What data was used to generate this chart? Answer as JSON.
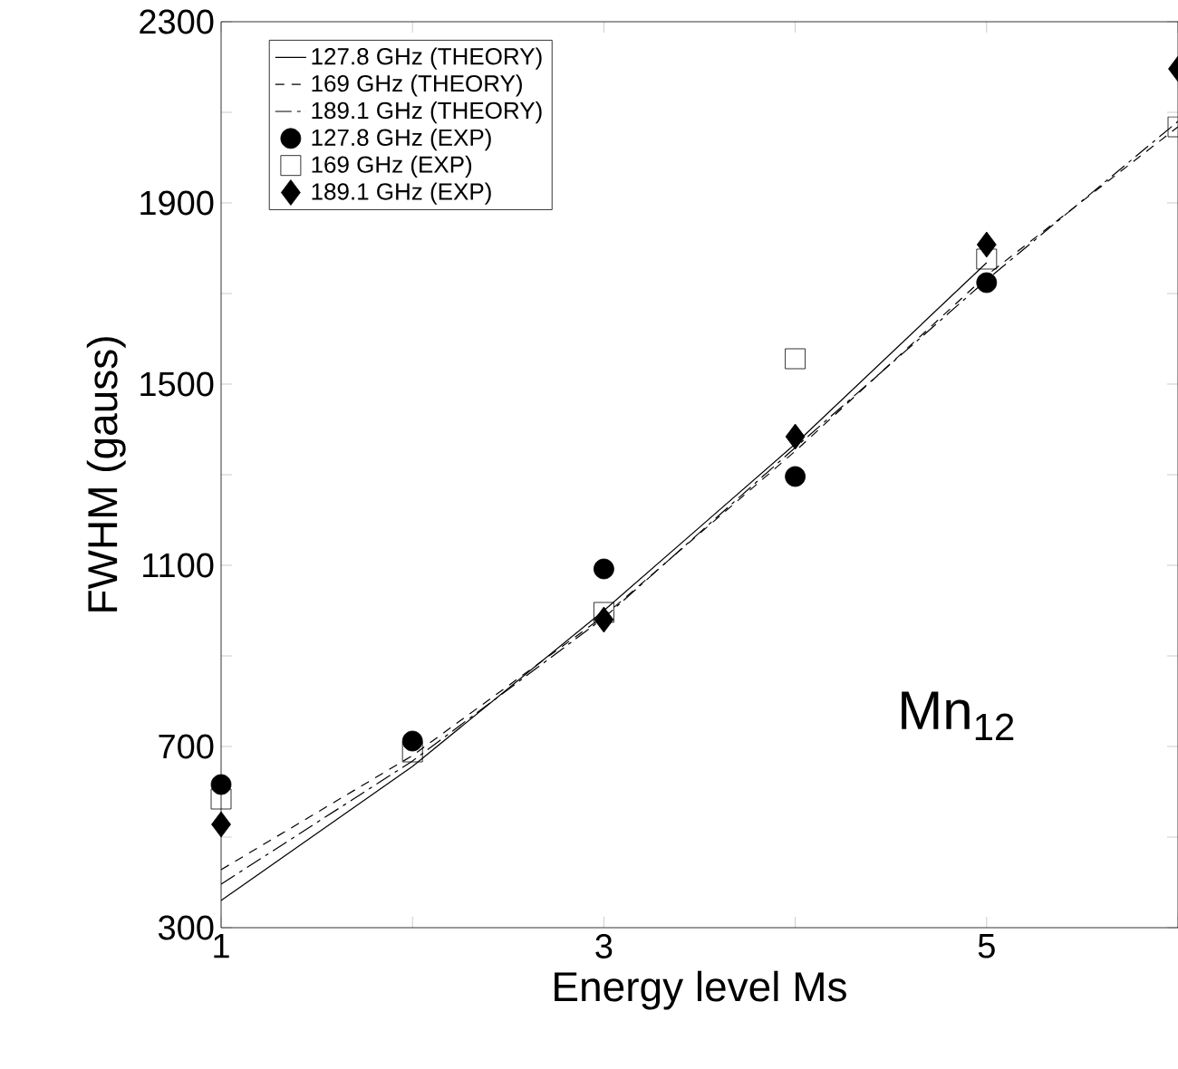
{
  "chart_data": {
    "type": "line",
    "xlabel": "Energy level Ms",
    "ylabel": "FWHM (gauss)",
    "x": [
      1,
      2,
      3,
      4,
      5,
      6
    ],
    "xlim": [
      1,
      6
    ],
    "xticks": [
      1,
      {
        "value": 2,
        "label": null
      },
      3,
      {
        "value": 4,
        "label": null
      },
      5,
      {
        "value": 6,
        "label": null
      }
    ],
    "ylim": [
      300,
      2300
    ],
    "yticks": [
      300,
      {
        "value": 500,
        "label": null
      },
      700,
      {
        "value": 900,
        "label": null
      },
      1100,
      {
        "value": 1300,
        "label": null
      },
      1500,
      {
        "value": 1700,
        "label": null
      },
      1900,
      {
        "value": 2100,
        "label": null
      },
      2300
    ],
    "grid": false,
    "legend": "top left",
    "annotations": [
      "Mn$_{12}$"
    ],
    "series": [
      {
        "name": "127.8 GHz (THEORY)",
        "line_style": "solid",
        "color": "#000000",
        "x": [
          1,
          2,
          3,
          4,
          5
        ],
        "values": [
          360,
          656,
          1000,
          1368,
          1768
        ]
      },
      {
        "name": "169 GHz (THEORY)",
        "line_style": "dashed",
        "color": "#000000",
        "values": [
          428,
          680,
          988,
          1352,
          1740,
          2068
        ]
      },
      {
        "name": "189.1 GHz (THEORY)",
        "line_style": "dashdot",
        "color": "#000000",
        "values": [
          396,
          668,
          984,
          1360,
          1730,
          2080
        ]
      },
      {
        "name": "127.8 GHz (EXP)",
        "type": "scatter",
        "marker": "circle",
        "color": "#000000",
        "x": [
          1,
          2,
          3,
          4,
          5
        ],
        "values": [
          616,
          712,
          1092,
          1296,
          1724
        ]
      },
      {
        "name": "169 GHz (EXP)",
        "type": "scatter",
        "marker": "square",
        "color": "#000000",
        "values": [
          584,
          688,
          996,
          1556,
          1776,
          2068
        ]
      },
      {
        "name": "189.1 GHz (EXP)",
        "type": "scatter",
        "marker": "diamond",
        "color": "#000000",
        "values": [
          528,
          null,
          980,
          1384,
          1808,
          2196
        ]
      }
    ]
  }
}
